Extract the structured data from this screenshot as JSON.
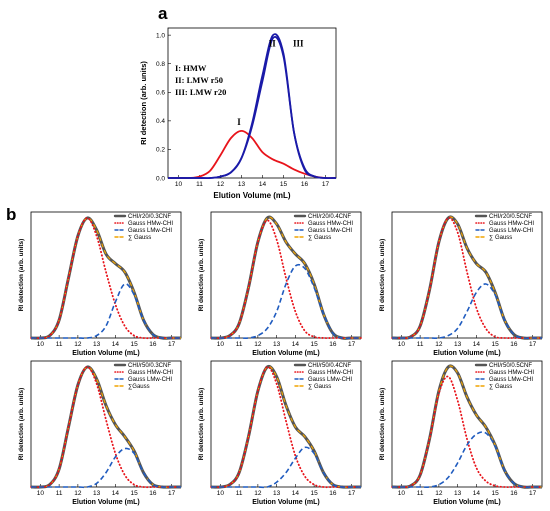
{
  "panel_labels": {
    "a": "a",
    "b": "b"
  },
  "colors": {
    "red": "#e8141b",
    "blue": "#1a1aa8",
    "sum_gray": "#555555",
    "sum_orange": "#f0a400",
    "hmw_dot": "#e8141b",
    "lmw_dash": "#1f5bbf"
  },
  "chart_data": [
    {
      "id": "a",
      "type": "line",
      "xlabel": "Elution Volume (mL)",
      "ylabel": "RI detection (arb. units)",
      "xlim": [
        9.5,
        17.5
      ],
      "ylim": [
        0,
        1.05
      ],
      "xticks": [
        10,
        11,
        12,
        13,
        14,
        15,
        16,
        17
      ],
      "yticks": [
        0.0,
        0.2,
        0.4,
        0.6,
        0.8,
        1.0
      ],
      "ytick_labels": [
        "0.0",
        "0.2",
        "0.4",
        "0.6",
        "0.8",
        "1.0"
      ],
      "legend_lines": [
        "I:   HMW",
        "II:  LMW r50",
        "III: LMW r20"
      ],
      "curve_labels": [
        "I",
        "II",
        "III"
      ],
      "x": [
        9.5,
        10,
        10.5,
        11,
        11.5,
        12,
        12.5,
        13,
        13.5,
        14,
        14.5,
        15,
        15.5,
        16,
        16.5,
        17,
        17.5
      ],
      "series": [
        {
          "key": "I",
          "color": "red",
          "values": [
            0.0,
            0.0,
            0.0,
            0.01,
            0.05,
            0.16,
            0.28,
            0.33,
            0.28,
            0.18,
            0.13,
            0.1,
            0.06,
            0.03,
            0.01,
            0.0,
            0.0
          ]
        },
        {
          "key": "II",
          "color": "blue",
          "values": [
            0.0,
            0.0,
            0.0,
            0.0,
            0.0,
            0.01,
            0.04,
            0.14,
            0.36,
            0.68,
            0.98,
            0.85,
            0.32,
            0.07,
            0.01,
            0.0,
            0.0
          ]
        },
        {
          "key": "III",
          "color": "blue",
          "values": [
            0.0,
            0.0,
            0.0,
            0.0,
            0.0,
            0.01,
            0.04,
            0.14,
            0.38,
            0.72,
            1.0,
            0.87,
            0.32,
            0.06,
            0.01,
            0.0,
            0.0
          ]
        }
      ]
    },
    {
      "id": "b1",
      "type": "line",
      "title": "CHI/r20/0.3CNF",
      "xlabel": "Elution Volume (mL)",
      "ylabel": "RI detection (arb. units)",
      "xlim": [
        9.5,
        17.5
      ],
      "ylim": [
        0,
        1.05
      ],
      "xticks": [
        10,
        11,
        12,
        13,
        14,
        15,
        16,
        17
      ],
      "legend": [
        "CHI/r20/0.3CNF",
        "Gauss HMw-CHI",
        "Gauss LMw-CHI",
        "∑ Gauss"
      ],
      "x": [
        9.5,
        10,
        10.5,
        11,
        11.5,
        12,
        12.5,
        13,
        13.5,
        14,
        14.5,
        15,
        15.5,
        16,
        16.5,
        17,
        17.5
      ],
      "series": [
        {
          "name": "CHI/r20/0.3CNF",
          "values": [
            0.0,
            0.0,
            0.02,
            0.15,
            0.5,
            0.85,
            1.0,
            0.9,
            0.7,
            0.62,
            0.55,
            0.38,
            0.15,
            0.03,
            0.0,
            0.0,
            0.0
          ]
        },
        {
          "name": "Gauss HMw-CHI",
          "values": [
            0.0,
            0.0,
            0.02,
            0.15,
            0.5,
            0.85,
            1.0,
            0.85,
            0.55,
            0.28,
            0.1,
            0.02,
            0.0,
            0.0,
            0.0,
            0.0,
            0.0
          ]
        },
        {
          "name": "Gauss LMw-CHI",
          "values": [
            0.0,
            0.0,
            0.0,
            0.0,
            0.0,
            0.0,
            0.0,
            0.02,
            0.1,
            0.3,
            0.45,
            0.36,
            0.15,
            0.03,
            0.0,
            0.0,
            0.0
          ]
        }
      ]
    },
    {
      "id": "b2",
      "type": "line",
      "title": "CHI/r20/0.4CNF",
      "xlabel": "Elution Volume (mL)",
      "ylabel": "RI detection (arb. units)",
      "xlim": [
        9.5,
        17.5
      ],
      "ylim": [
        0,
        1.05
      ],
      "xticks": [
        10,
        11,
        12,
        13,
        14,
        15,
        16,
        17
      ],
      "legend": [
        "CHI/r20/0.4CNF",
        "Gauss HMw-CHI",
        "Gauss LMw-CHI",
        "∑ Gauss"
      ],
      "x": [
        9.5,
        10,
        10.5,
        11,
        11.5,
        12,
        12.5,
        13,
        13.5,
        14,
        14.5,
        15,
        15.5,
        16,
        16.5,
        17,
        17.5
      ],
      "series": [
        {
          "name": "CHI/r20/0.4CNF",
          "values": [
            0.0,
            0.0,
            0.02,
            0.12,
            0.42,
            0.8,
            1.0,
            0.95,
            0.8,
            0.7,
            0.62,
            0.45,
            0.2,
            0.04,
            0.0,
            0.0,
            0.0
          ]
        },
        {
          "name": "Gauss HMw-CHI",
          "values": [
            0.0,
            0.0,
            0.02,
            0.12,
            0.42,
            0.8,
            0.98,
            0.82,
            0.5,
            0.22,
            0.06,
            0.01,
            0.0,
            0.0,
            0.0,
            0.0,
            0.0
          ]
        },
        {
          "name": "Gauss LMw-CHI",
          "values": [
            0.0,
            0.0,
            0.0,
            0.0,
            0.0,
            0.02,
            0.08,
            0.22,
            0.45,
            0.6,
            0.58,
            0.42,
            0.2,
            0.04,
            0.0,
            0.0,
            0.0
          ]
        }
      ]
    },
    {
      "id": "b3",
      "type": "line",
      "title": "CHI/r20/0.5CNF",
      "xlabel": "Elution Volume (mL)",
      "ylabel": "RI detection (arb. units)",
      "xlim": [
        9.5,
        17.5
      ],
      "ylim": [
        0,
        1.05
      ],
      "xticks": [
        10,
        11,
        12,
        13,
        14,
        15,
        16,
        17
      ],
      "legend": [
        "CHI/r20/0.5CNF",
        "Gauss HMw-CHI",
        "Gauss LMw-CHI",
        "∑ Gauss"
      ],
      "x": [
        9.5,
        10,
        10.5,
        11,
        11.5,
        12,
        12.5,
        13,
        13.5,
        14,
        14.5,
        15,
        15.5,
        16,
        16.5,
        17,
        17.5
      ],
      "series": [
        {
          "name": "CHI/r20/0.5CNF",
          "values": [
            0.0,
            0.0,
            0.01,
            0.1,
            0.4,
            0.8,
            1.0,
            0.95,
            0.75,
            0.62,
            0.55,
            0.38,
            0.15,
            0.03,
            0.0,
            0.0,
            0.0
          ]
        },
        {
          "name": "Gauss HMw-CHI",
          "values": [
            0.0,
            0.0,
            0.01,
            0.1,
            0.4,
            0.8,
            1.0,
            0.88,
            0.55,
            0.25,
            0.08,
            0.01,
            0.0,
            0.0,
            0.0,
            0.0,
            0.0
          ]
        },
        {
          "name": "Gauss LMw-CHI",
          "values": [
            0.0,
            0.0,
            0.0,
            0.0,
            0.0,
            0.0,
            0.02,
            0.08,
            0.22,
            0.38,
            0.45,
            0.36,
            0.15,
            0.03,
            0.0,
            0.0,
            0.0
          ]
        }
      ]
    },
    {
      "id": "b4",
      "type": "line",
      "title": "CHI/r50/0.3CNF",
      "xlabel": "Elution Volume (mL)",
      "ylabel": "RI detection (arb. units)",
      "xlim": [
        9.5,
        17.5
      ],
      "ylim": [
        0,
        1.05
      ],
      "xticks": [
        10,
        11,
        12,
        13,
        14,
        15,
        16,
        17
      ],
      "legend": [
        "CHI/r50/0.3CNF",
        "Gauss HMw-CHI",
        "Gauss LMw-CHI",
        "∑Gauss"
      ],
      "x": [
        9.5,
        10,
        10.5,
        11,
        11.5,
        12,
        12.5,
        13,
        13.5,
        14,
        14.5,
        15,
        15.5,
        16,
        16.5,
        17,
        17.5
      ],
      "series": [
        {
          "name": "CHI/r50/0.3CNF",
          "values": [
            0.0,
            0.0,
            0.02,
            0.15,
            0.5,
            0.85,
            1.0,
            0.9,
            0.68,
            0.52,
            0.42,
            0.3,
            0.12,
            0.02,
            0.0,
            0.0,
            0.0
          ]
        },
        {
          "name": "Gauss HMw-CHI",
          "values": [
            0.0,
            0.0,
            0.02,
            0.15,
            0.5,
            0.85,
            1.0,
            0.86,
            0.56,
            0.28,
            0.1,
            0.02,
            0.0,
            0.0,
            0.0,
            0.0,
            0.0
          ]
        },
        {
          "name": "Gauss LMw-CHI",
          "values": [
            0.0,
            0.0,
            0.0,
            0.0,
            0.0,
            0.0,
            0.0,
            0.03,
            0.12,
            0.25,
            0.32,
            0.28,
            0.12,
            0.02,
            0.0,
            0.0,
            0.0
          ]
        }
      ]
    },
    {
      "id": "b5",
      "type": "line",
      "title": "CHI/r50/0.4CNF",
      "xlabel": "Elution Volume (mL)",
      "ylabel": "RI detection (arb. units)",
      "xlim": [
        9.5,
        17.5
      ],
      "ylim": [
        0,
        1.05
      ],
      "xticks": [
        10,
        11,
        12,
        13,
        14,
        15,
        16,
        17
      ],
      "legend": [
        "CHI/r50/0.4CNF",
        "Gauss HMw-CHI",
        "Gauss LMw-CHI",
        "∑ Gauss"
      ],
      "x": [
        9.5,
        10,
        10.5,
        11,
        11.5,
        12,
        12.5,
        13,
        13.5,
        14,
        14.5,
        15,
        15.5,
        16,
        16.5,
        17,
        17.5
      ],
      "series": [
        {
          "name": "CHI/r50/0.4CNF",
          "values": [
            0.0,
            0.0,
            0.02,
            0.12,
            0.42,
            0.8,
            1.0,
            0.92,
            0.68,
            0.5,
            0.42,
            0.3,
            0.12,
            0.02,
            0.0,
            0.0,
            0.0
          ]
        },
        {
          "name": "Gauss HMw-CHI",
          "values": [
            0.0,
            0.0,
            0.02,
            0.12,
            0.42,
            0.8,
            1.0,
            0.86,
            0.55,
            0.26,
            0.09,
            0.02,
            0.0,
            0.0,
            0.0,
            0.0,
            0.0
          ]
        },
        {
          "name": "Gauss LMw-CHI",
          "values": [
            0.0,
            0.0,
            0.0,
            0.0,
            0.0,
            0.0,
            0.0,
            0.04,
            0.12,
            0.24,
            0.33,
            0.28,
            0.12,
            0.02,
            0.0,
            0.0,
            0.0
          ]
        }
      ]
    },
    {
      "id": "b6",
      "type": "line",
      "title": "CHI/r50/0.5CNF",
      "xlabel": "Elution Volume (mL)",
      "ylabel": "RI detection (arb. units)",
      "xlim": [
        9.5,
        17.5
      ],
      "ylim": [
        0,
        1.05
      ],
      "xticks": [
        10,
        11,
        12,
        13,
        14,
        15,
        16,
        17
      ],
      "legend": [
        "CHI/r50/0.5CNF",
        "Gauss HMw-CHI",
        "Gauss LMw-CHI",
        "∑ Gauss"
      ],
      "x": [
        9.5,
        10,
        10.5,
        11,
        11.5,
        12,
        12.5,
        13,
        13.5,
        14,
        14.5,
        15,
        15.5,
        16,
        16.5,
        17,
        17.5
      ],
      "series": [
        {
          "name": "CHI/r50/0.5CNF",
          "values": [
            0.0,
            0.0,
            0.01,
            0.1,
            0.4,
            0.8,
            1.0,
            0.95,
            0.75,
            0.6,
            0.5,
            0.35,
            0.14,
            0.03,
            0.0,
            0.0,
            0.0
          ]
        },
        {
          "name": "Gauss HMw-CHI",
          "values": [
            0.0,
            0.0,
            0.01,
            0.1,
            0.4,
            0.78,
            0.92,
            0.72,
            0.4,
            0.16,
            0.05,
            0.01,
            0.0,
            0.0,
            0.0,
            0.0,
            0.0
          ]
        },
        {
          "name": "Gauss LMw-CHI",
          "values": [
            0.0,
            0.0,
            0.0,
            0.0,
            0.0,
            0.02,
            0.08,
            0.2,
            0.35,
            0.44,
            0.45,
            0.34,
            0.14,
            0.03,
            0.0,
            0.0,
            0.0
          ]
        }
      ]
    }
  ]
}
